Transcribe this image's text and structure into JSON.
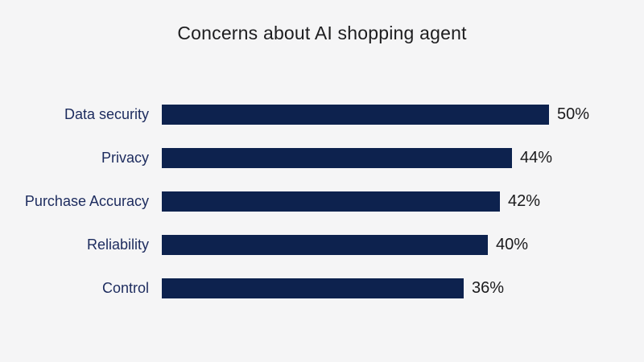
{
  "chart_data": {
    "type": "bar",
    "orientation": "horizontal",
    "title": "Concerns about AI shopping agent",
    "categories": [
      "Data security",
      "Privacy",
      "Purchase Accuracy",
      "Reliability",
      "Control"
    ],
    "values": [
      50,
      44,
      42,
      40,
      36
    ],
    "value_labels": [
      "50%",
      "44%",
      "42%",
      "40%",
      "36%"
    ],
    "xlabel": "",
    "ylabel": "",
    "xlim": [
      0,
      50
    ],
    "grid": false,
    "legend": "none",
    "value_label_position": "end-of-bar",
    "colors": {
      "bar": "#0d224e",
      "category_label": "#1c2b5e",
      "value_label": "#1a1a1c",
      "title": "#1d1d1f",
      "background": "#f5f5f6"
    }
  }
}
